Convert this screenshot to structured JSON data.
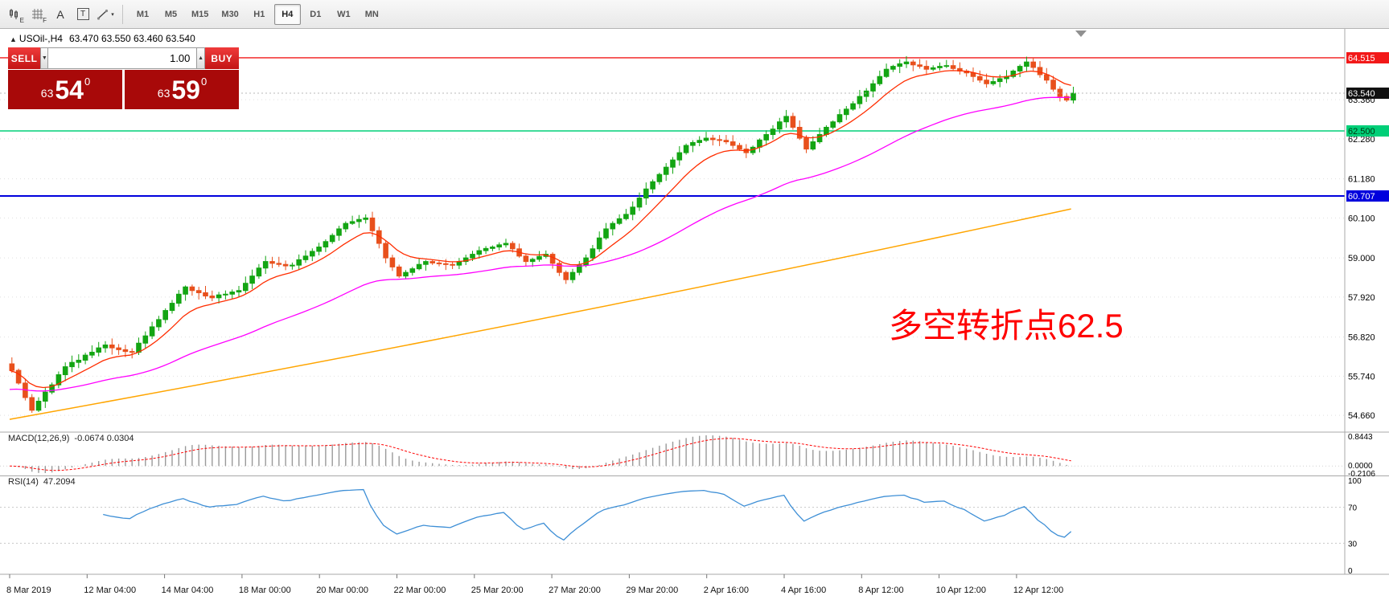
{
  "toolbar": {
    "icons": {
      "candle_sub": "E",
      "grid_sub": "F",
      "text_label": "A",
      "textbox_label": "T"
    },
    "timeframes": [
      "M1",
      "M5",
      "M15",
      "M30",
      "H1",
      "H4",
      "D1",
      "W1",
      "MN"
    ],
    "active_timeframe": "H4"
  },
  "symbol_bar": {
    "symbol": "USOil-,H4",
    "ohlc": "63.470 63.550 63.460 63.540"
  },
  "trade_panel": {
    "sell_label": "SELL",
    "buy_label": "BUY",
    "volume": "1.00",
    "sell_price": {
      "prefix": "63",
      "main": "54",
      "sup": "0"
    },
    "buy_price": {
      "prefix": "63",
      "main": "59",
      "sup": "0"
    }
  },
  "annotation": {
    "text": "多空转折点62.5"
  },
  "macd_label": {
    "name": "MACD(12,26,9)",
    "values": "-0.0674 0.0304"
  },
  "rsi_label": {
    "name": "RSI(14)",
    "value": "47.2094"
  },
  "chart_data": {
    "type": "candlestick",
    "symbol": "USOil-",
    "timeframe": "H4",
    "title": "USOil-,H4",
    "ohlc_display": "63.470 63.550 63.460 63.540",
    "current_price": "63.540",
    "y_ticks": [
      "63.360",
      "62.280",
      "61.180",
      "60.100",
      "59.000",
      "57.920",
      "56.820",
      "55.740",
      "54.660"
    ],
    "price_lines": [
      {
        "value": "64.515",
        "price": 64.515,
        "color": "#f21818",
        "badge_text": "#ffffff",
        "width": 1.4
      },
      {
        "value": "62.500",
        "price": 62.5,
        "color": "#00cf78",
        "badge_text": "#00350f",
        "width": 1.4
      },
      {
        "value": "60.707",
        "price": 60.707,
        "color": "#0000dd",
        "badge_text": "#ffffff",
        "width": 2
      }
    ],
    "x_labels": [
      "8 Mar 2019",
      "12 Mar 04:00",
      "14 Mar 04:00",
      "18 Mar 00:00",
      "20 Mar 00:00",
      "22 Mar 00:00",
      "25 Mar 20:00",
      "27 Mar 20:00",
      "29 Mar 20:00",
      "2 Apr 16:00",
      "4 Apr 16:00",
      "8 Apr 12:00",
      "10 Apr 12:00",
      "12 Apr 12:00"
    ],
    "closes": [
      55.9,
      55.55,
      55.15,
      54.8,
      55.05,
      55.3,
      55.5,
      55.78,
      56.0,
      56.12,
      56.18,
      56.32,
      56.4,
      56.52,
      56.6,
      56.52,
      56.47,
      56.42,
      56.4,
      56.65,
      56.85,
      57.1,
      57.3,
      57.55,
      57.75,
      58.0,
      58.2,
      58.1,
      58.04,
      57.95,
      57.9,
      57.98,
      58.0,
      58.06,
      58.1,
      58.3,
      58.5,
      58.72,
      58.9,
      58.85,
      58.82,
      58.78,
      58.8,
      58.95,
      59.05,
      59.18,
      59.3,
      59.45,
      59.62,
      59.8,
      59.95,
      60.0,
      60.06,
      60.1,
      59.75,
      59.4,
      59.0,
      58.75,
      58.5,
      58.6,
      58.7,
      58.82,
      58.9,
      58.86,
      58.84,
      58.82,
      58.8,
      58.9,
      59.0,
      59.1,
      59.2,
      59.26,
      59.3,
      59.36,
      59.4,
      59.25,
      59.05,
      58.9,
      58.96,
      59.04,
      59.1,
      58.85,
      58.6,
      58.4,
      58.6,
      58.8,
      59.0,
      59.25,
      59.55,
      59.8,
      59.95,
      60.08,
      60.2,
      60.4,
      60.65,
      60.9,
      61.1,
      61.3,
      61.5,
      61.7,
      61.9,
      62.1,
      62.18,
      62.24,
      62.3,
      62.26,
      62.24,
      62.2,
      62.1,
      62.0,
      61.9,
      62.05,
      62.25,
      62.4,
      62.55,
      62.75,
      62.9,
      62.6,
      62.3,
      62.0,
      62.2,
      62.4,
      62.6,
      62.75,
      62.95,
      63.1,
      63.25,
      63.45,
      63.6,
      63.8,
      64.0,
      64.2,
      64.28,
      64.35,
      64.4,
      64.32,
      64.28,
      64.2,
      64.24,
      64.28,
      64.3,
      64.22,
      64.15,
      64.1,
      64.0,
      63.9,
      63.8,
      63.86,
      63.94,
      64.0,
      64.15,
      64.28,
      64.4,
      64.25,
      64.05,
      63.9,
      63.65,
      63.45,
      63.35,
      63.54
    ],
    "ma_slow": {
      "start": 54.55,
      "mid": 57.2,
      "end": 60.35
    },
    "colors": {
      "up": "#13a513",
      "down": "#e8501c",
      "ma_fast": "#ff2d00",
      "ma_mid": "#ff00ff",
      "ma_slow": "#ffa500",
      "rsi": "#3e8fd6",
      "macd_signal": "#ff0000",
      "macd_bar": "#9a9a9a"
    },
    "macd": {
      "label": "MACD(12,26,9)",
      "values": "-0.0674 0.0304",
      "fast": 12,
      "slow": 26,
      "signal": 9,
      "scale": [
        "0.8443",
        "0.0000",
        "-0.2106"
      ]
    },
    "rsi": {
      "label": "RSI(14)",
      "period": 14,
      "value": "47.2094",
      "scale": [
        "100",
        "70",
        "30",
        "0"
      ],
      "levels": [
        70,
        30
      ]
    }
  }
}
